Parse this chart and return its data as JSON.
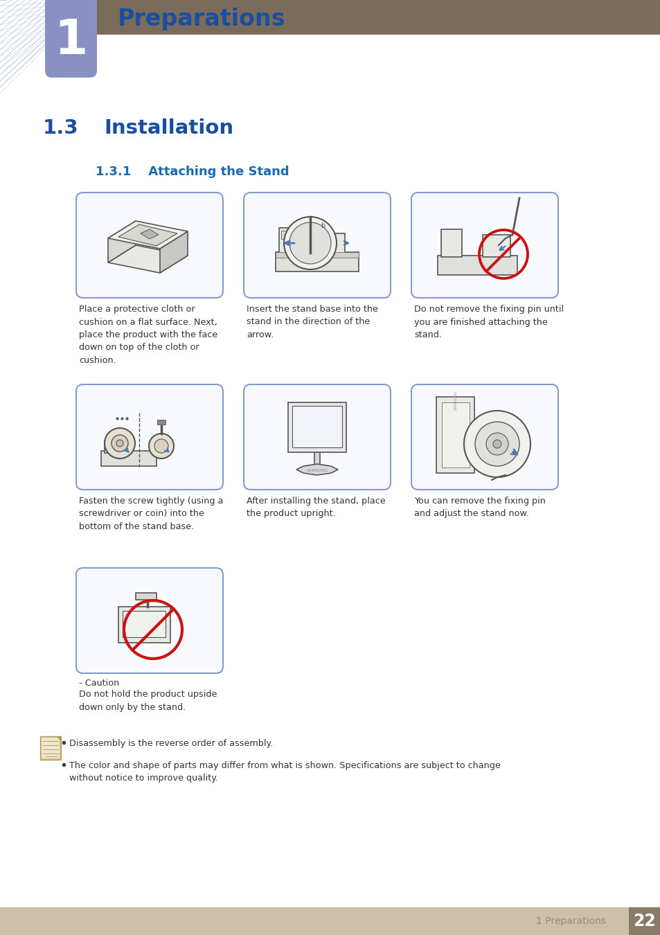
{
  "bg_color": "#ffffff",
  "header_bar_color": "#7a6b5a",
  "header_number_box_color": "#8890c4",
  "header_number_text": "1",
  "header_title": "Preparations",
  "header_title_color": "#1a4fa0",
  "section_number": "1.3",
  "section_title": "Installation",
  "section_color": "#1a4fa0",
  "subsection_number": "1.3.1",
  "subsection_title": "Attaching the Stand",
  "subsection_color": "#1a6ab0",
  "image_border_color": "#8899cc",
  "image_bg_color": "#f7f9ff",
  "captions": [
    "Place a protective cloth or\ncushion on a flat surface. Next,\nplace the product with the face\ndown on top of the cloth or\ncushion.",
    "Insert the stand base into the\nstand in the direction of the\narrow.",
    "Do not remove the fixing pin until\nyou are finished attaching the\nstand.",
    "Fasten the screw tightly (using a\nscrewdriver or coin) into the\nbottom of the stand base.",
    "After installing the stand, place\nthe product upright.",
    "You can remove the fixing pin\nand adjust the stand now."
  ],
  "caution_label": "- Caution",
  "caution_body": "Do not hold the product upside\ndown only by the stand.",
  "note_bullets": [
    "Disassembly is the reverse order of assembly.",
    "The color and shape of parts may differ from what is shown. Specifications are subject to change\nwithout notice to improve quality."
  ],
  "footer_bg_color": "#ccc0aa",
  "footer_text": "1 Preparations",
  "footer_text_color": "#9a8a78",
  "footer_number": "22",
  "footer_number_bg": "#8a7a68",
  "footer_number_color": "#ffffff",
  "text_color": "#333333"
}
